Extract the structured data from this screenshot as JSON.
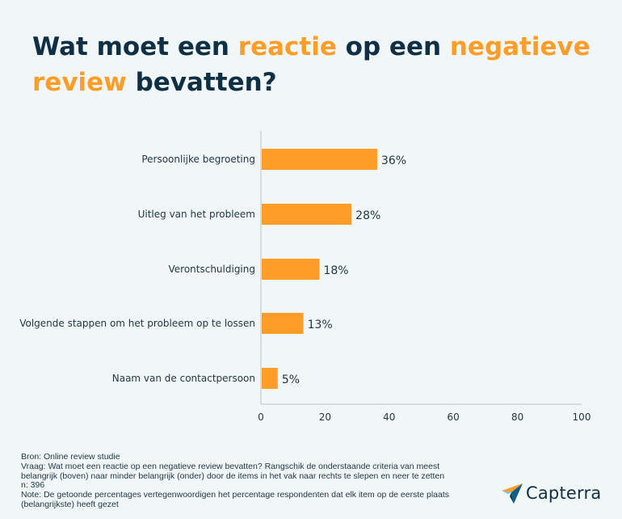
{
  "title": {
    "parts": [
      {
        "text": "Wat moet een ",
        "highlight": false
      },
      {
        "text": "reactie",
        "highlight": true
      },
      {
        "text": " op een ",
        "highlight": false
      },
      {
        "text": "negatieve review",
        "highlight": true
      },
      {
        "text": " bevatten?",
        "highlight": false
      }
    ]
  },
  "colors": {
    "accent": "#ff9d28",
    "dark": "#0f2f45",
    "background": "#f1f7f7"
  },
  "chart_data": {
    "type": "bar",
    "orientation": "horizontal",
    "categories": [
      "Persoonlijke begroeting",
      "Uitleg van het probleem",
      "Verontschuldiging",
      "Volgende stappen om het probleem op te lossen",
      "Naam van de contactpersoon"
    ],
    "values": [
      36,
      28,
      18,
      13,
      5
    ],
    "value_labels": [
      "36%",
      "28%",
      "18%",
      "13%",
      "5%"
    ],
    "xlim": [
      0,
      100
    ],
    "xticks": [
      0,
      20,
      40,
      60,
      80,
      100
    ],
    "grid": false,
    "bar_color": "#ff9d28"
  },
  "footer": {
    "source": "Bron: Online review studie",
    "question": "Vraag: Wat moet een reactie op een negatieve review bevatten? Rangschik de onderstaande criteria van meest belangrijk (boven) naar minder belangrijk (onder) door de items in het vak naar rechts te slepen en neer te zetten",
    "n": "n: 396",
    "note": "Note: De getoonde percentages vertegenwoordigen het percentage respondenten dat elk item op de eerste plaats (belangrijkste) heeft gezet"
  },
  "logo": {
    "text": "Capterra",
    "icon": "capterra-arrow-icon"
  }
}
